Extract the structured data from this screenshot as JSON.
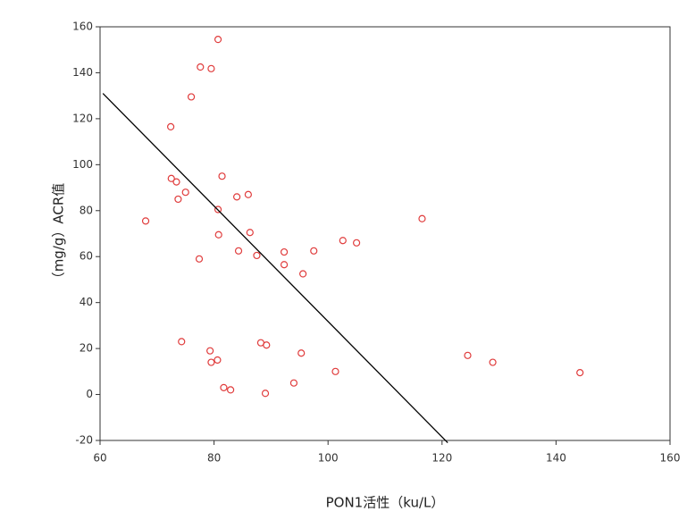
{
  "chart_data": {
    "type": "scatter",
    "x_label": "PON1活性（ku/L）",
    "y_label": "（mg/g）ACR值",
    "color": "#e03c3c",
    "x": [
      80.7,
      77.6,
      79.5,
      76,
      72.4,
      81.4,
      72.5,
      73.4,
      75,
      73.7,
      86,
      84,
      80.7,
      68,
      116.5,
      80.8,
      86.3,
      102.6,
      105,
      84.3,
      92.3,
      97.5,
      87.5,
      77.4,
      92.3,
      95.6,
      74.3,
      88.2,
      89.2,
      79.3,
      95.3,
      124.5,
      80.6,
      79.5,
      128.9,
      101.3,
      144.2,
      94,
      81.7,
      82.9,
      89
    ],
    "y": [
      154.5,
      142.5,
      141.8,
      129.5,
      116.5,
      95,
      94,
      92.5,
      88,
      85,
      87,
      86,
      80.5,
      75.5,
      76.5,
      69.5,
      70.5,
      67,
      66,
      62.5,
      62,
      62.5,
      60.5,
      59,
      56.5,
      52.5,
      23,
      22.5,
      21.5,
      19,
      18,
      17,
      15,
      14,
      14,
      10,
      9.5,
      5,
      3,
      2,
      0.5
    ],
    "fit_line": {
      "x": [
        60.5,
        121
      ],
      "y": [
        131,
        -21
      ],
      "color": "#000000"
    },
    "xlim": [
      60,
      160
    ],
    "xticks": [
      60,
      80,
      100,
      120,
      140,
      160
    ],
    "ylim": [
      -20,
      160
    ],
    "yticks": [
      -20,
      0,
      20,
      40,
      60,
      80,
      100,
      120,
      140,
      160
    ]
  }
}
